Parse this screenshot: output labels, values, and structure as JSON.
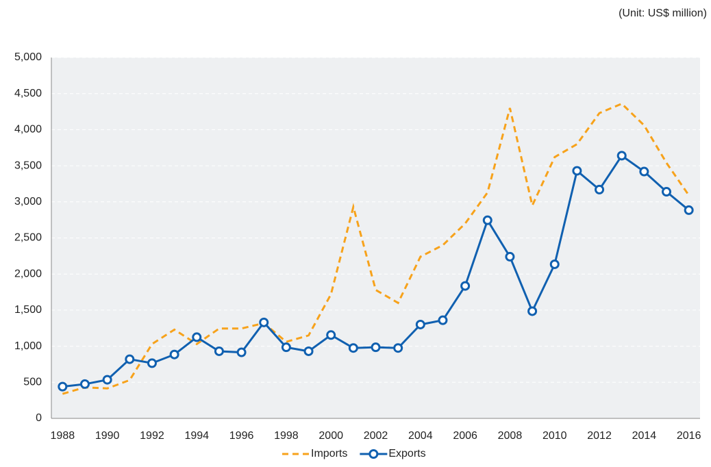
{
  "chart_data": {
    "type": "line",
    "subtitle": "(Unit: US$ million)",
    "categories": [
      "1988",
      null,
      "1990",
      null,
      "1992",
      null,
      "1994",
      null,
      "1996",
      null,
      "1998",
      null,
      "2000",
      null,
      "2002",
      null,
      "2004",
      null,
      "2006",
      null,
      "2008",
      null,
      "2010",
      null,
      "2012",
      null,
      "2014",
      null,
      "2016"
    ],
    "series": [
      {
        "name": "Imports",
        "color": "#f7a21b",
        "dashed": true,
        "markers": false,
        "values": [
          340,
          430,
          415,
          530,
          1030,
          1230,
          1030,
          1245,
          1245,
          1320,
          1060,
          1150,
          1720,
          2930,
          1780,
          1600,
          2240,
          2400,
          2700,
          3130,
          4300,
          2950,
          3620,
          3800,
          4230,
          4360,
          4060,
          3540,
          3090
        ]
      },
      {
        "name": "Exports",
        "color": "#1060b0",
        "dashed": false,
        "markers": true,
        "values": [
          440,
          475,
          535,
          820,
          765,
          885,
          1125,
          930,
          915,
          1330,
          985,
          930,
          1155,
          975,
          985,
          975,
          1300,
          1360,
          1835,
          2745,
          2240,
          1485,
          2135,
          3430,
          3170,
          3640,
          3420,
          3140,
          2885
        ]
      }
    ],
    "ylim": [
      0,
      5000
    ],
    "yticks": [
      0,
      500,
      {
        "value": 1000,
        "label": "1,000"
      },
      {
        "value": 1500,
        "label": "1,500"
      },
      {
        "value": 2000,
        "label": "2,000"
      },
      {
        "value": 2500,
        "label": "2,500"
      },
      {
        "value": 3000,
        "label": "3,000"
      },
      {
        "value": 3500,
        "label": "3,500"
      },
      {
        "value": 4000,
        "label": "4,000"
      },
      {
        "value": 4500,
        "label": "4,500"
      },
      {
        "value": 5000,
        "label": "5,000"
      }
    ],
    "grid": true,
    "legend": "bottom"
  }
}
